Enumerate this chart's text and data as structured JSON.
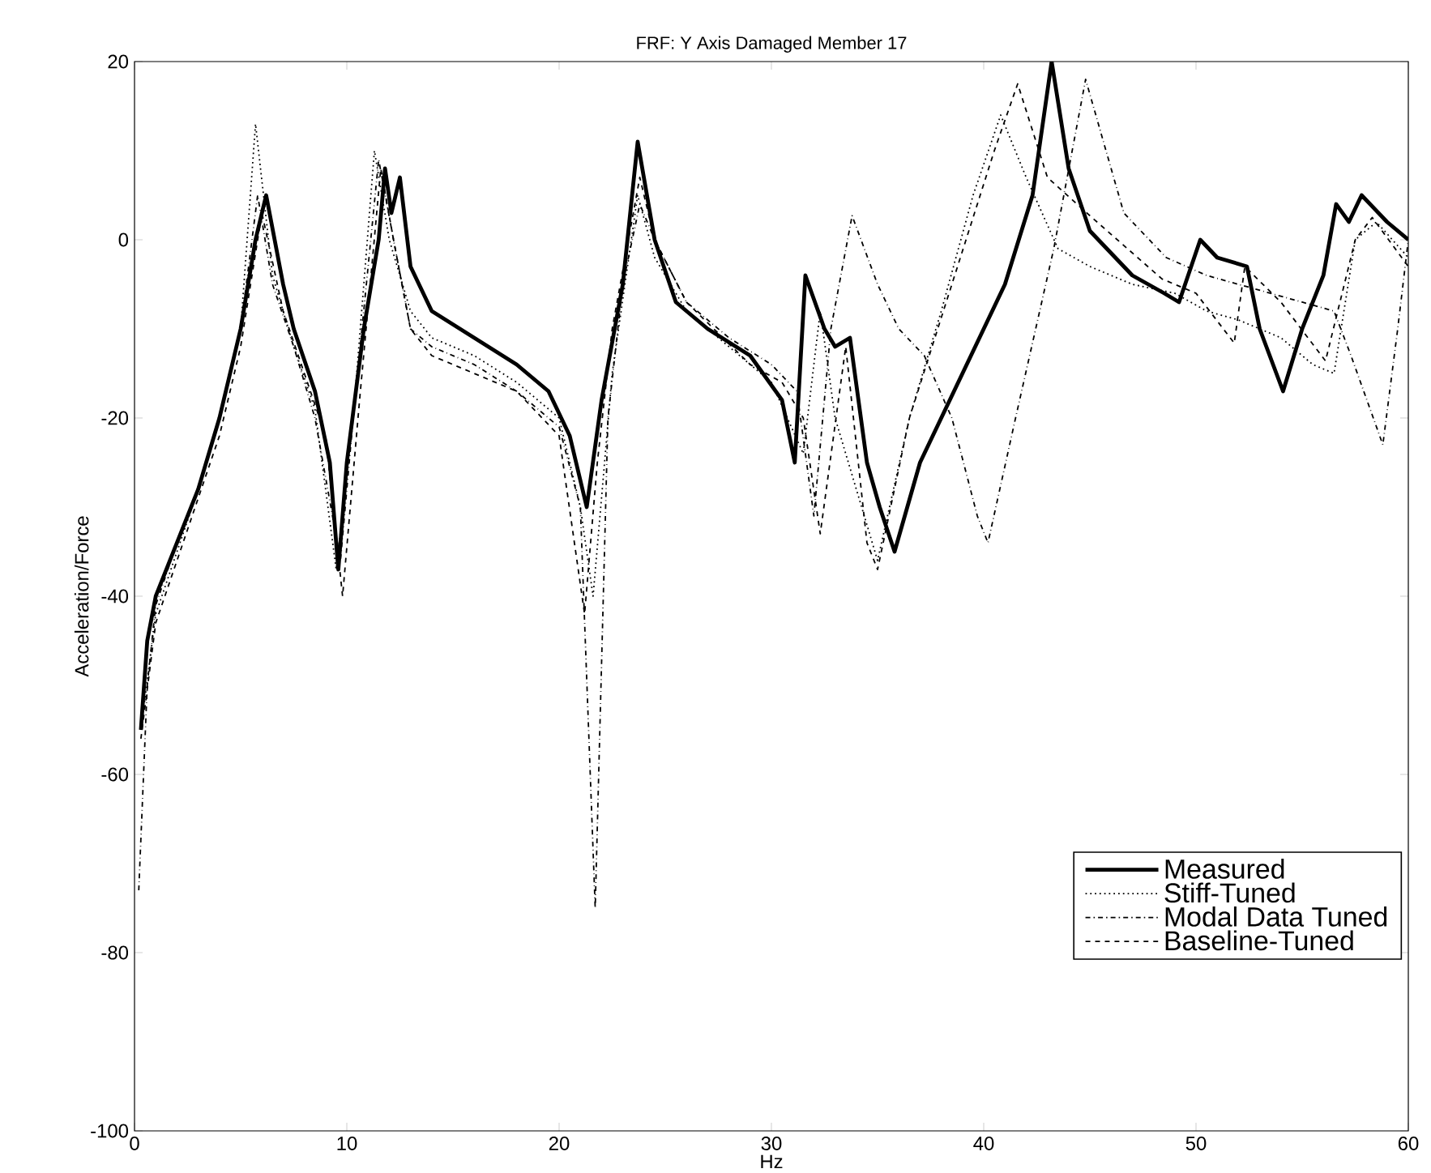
{
  "chart_data": {
    "type": "line",
    "title": "FRF: Y Axis Damaged Member 17",
    "xlabel": "Hz",
    "ylabel": "Acceleration/Force",
    "xlim": [
      0,
      60
    ],
    "ylim": [
      -100,
      20
    ],
    "xticks": [
      0,
      10,
      20,
      30,
      40,
      50,
      60
    ],
    "yticks": [
      -100,
      -80,
      -60,
      -40,
      -20,
      0,
      20
    ],
    "grid": false,
    "legend": "bottom right",
    "marker": "none",
    "series": [
      {
        "name": "Measured",
        "color": "#000000",
        "line_style": "solid",
        "x": [
          0.3,
          0.6,
          1,
          2,
          3,
          4,
          5,
          5.7,
          6.2,
          7,
          7.5,
          8.5,
          9.2,
          9.6,
          10,
          10.8,
          11.5,
          11.8,
          12.1,
          12.5,
          13,
          14,
          16,
          18,
          19.5,
          20.5,
          21.3,
          22,
          23,
          23.7,
          24.5,
          25.5,
          27,
          29,
          30.5,
          31.1,
          31.6,
          32.5,
          33,
          33.7,
          34.5,
          35.1,
          35.8,
          37,
          39,
          41,
          42.3,
          43.2,
          44,
          45,
          47,
          48.5,
          49.2,
          50.2,
          51,
          52.4,
          53,
          54.1,
          55,
          56,
          56.6,
          57.2,
          57.8,
          59,
          60
        ],
        "values": [
          -55,
          -45,
          -40,
          -34,
          -28,
          -20,
          -10,
          0,
          5,
          -5,
          -10,
          -17,
          -25,
          -37,
          -25,
          -10,
          0,
          8,
          3,
          7,
          -3,
          -8,
          -11,
          -14,
          -17,
          -22,
          -30,
          -18,
          -5,
          11,
          0,
          -7,
          -10,
          -13,
          -18,
          -25,
          -4,
          -10,
          -12,
          -11,
          -25,
          -30,
          -35,
          -25,
          -15,
          -5,
          5,
          20,
          8,
          1,
          -4,
          -6,
          -7,
          0,
          -2,
          -3,
          -10,
          -17,
          -10,
          -4,
          4,
          2,
          5,
          2,
          0
        ]
      },
      {
        "name": "Stiff-Tuned",
        "color": "#000000",
        "line_style": "dotted",
        "x": [
          0.3,
          1,
          2,
          3,
          4,
          5,
          5.7,
          6.5,
          7.5,
          8.5,
          9.5,
          10.3,
          11.3,
          12,
          13,
          14,
          16,
          18,
          20,
          21,
          21.6,
          22.5,
          23.7,
          24.5,
          26,
          28,
          30,
          31.5,
          32.3,
          33,
          34,
          35,
          36.5,
          38,
          39.5,
          40.8,
          42,
          43.5,
          45,
          47,
          49,
          50.5,
          52,
          54,
          55.5,
          56.5,
          57.5,
          58.5,
          60
        ],
        "values": [
          -55,
          -42,
          -35,
          -28,
          -20,
          -10,
          13,
          -4,
          -12,
          -19,
          -37,
          -20,
          10,
          0,
          -8,
          -11,
          -13,
          -16,
          -20,
          -30,
          -40,
          -15,
          5,
          -2,
          -8,
          -12,
          -16,
          -24,
          -8,
          -20,
          -28,
          -36,
          -20,
          -8,
          5,
          14,
          7,
          -1,
          -3,
          -5,
          -6,
          -8,
          -9,
          -11,
          -14,
          -15,
          0,
          2,
          -2
        ]
      },
      {
        "name": "Modal Data Tuned",
        "color": "#000000",
        "line_style": "dashdot",
        "x": [
          0.2,
          0.6,
          1,
          2,
          3,
          4,
          5,
          5.8,
          6.5,
          7.5,
          8.5,
          9.7,
          10.3,
          11.5,
          12.2,
          13,
          14,
          16,
          18,
          20,
          21,
          21.7,
          22.3,
          23,
          23.8,
          24.5,
          26,
          28,
          30,
          31.2,
          32,
          32.8,
          33.8,
          35,
          36,
          37.2,
          38.5,
          39.7,
          40.2,
          41.5,
          43.3,
          44.8,
          46.6,
          48.6,
          50.5,
          52,
          55,
          56.5,
          57.3,
          58.8,
          59.5,
          60
        ],
        "values": [
          -73,
          -50,
          -41,
          -34,
          -28,
          -20,
          -10,
          5,
          -5,
          -12,
          -20,
          -36,
          -20,
          9,
          0,
          -10,
          -12,
          -14,
          -17,
          -21,
          -30,
          -75,
          -20,
          -5,
          4,
          0,
          -7,
          -11,
          -14,
          -17,
          -31,
          -10,
          2.7,
          -5,
          -10,
          -13,
          -20,
          -31,
          -34,
          -20,
          -1,
          18,
          3,
          -2,
          -4,
          -5,
          -7,
          -8,
          -13,
          -23,
          -10,
          0
        ]
      },
      {
        "name": "Baseline-Tuned",
        "color": "#000000",
        "line_style": "dashed",
        "x": [
          0.3,
          1,
          2,
          3,
          4,
          5,
          6,
          7,
          8,
          9,
          9.8,
          10.6,
          11.6,
          12.2,
          13,
          14,
          16,
          18,
          20,
          21.2,
          21.8,
          22.5,
          23.8,
          24.5,
          26,
          29,
          30.5,
          31.5,
          32.3,
          33.5,
          34.5,
          35,
          36.5,
          38.5,
          40.5,
          41.6,
          43,
          45,
          48.4,
          50,
          51.8,
          52.3,
          54,
          56.1,
          57.5,
          58.3,
          60
        ],
        "values": [
          -56,
          -43,
          -36,
          -29,
          -22,
          -12,
          3,
          -8,
          -15,
          -22,
          -40,
          -18,
          8,
          0,
          -10,
          -13,
          -15,
          -17,
          -22,
          -42,
          -25,
          -10,
          7,
          0,
          -7,
          -14,
          -16,
          -20,
          -33,
          -12,
          -34,
          -37,
          -20,
          -5,
          10,
          17.5,
          7,
          2.7,
          -4.4,
          -6,
          -11.6,
          -3,
          -7,
          -13.6,
          0,
          2.5,
          -3
        ]
      }
    ]
  }
}
